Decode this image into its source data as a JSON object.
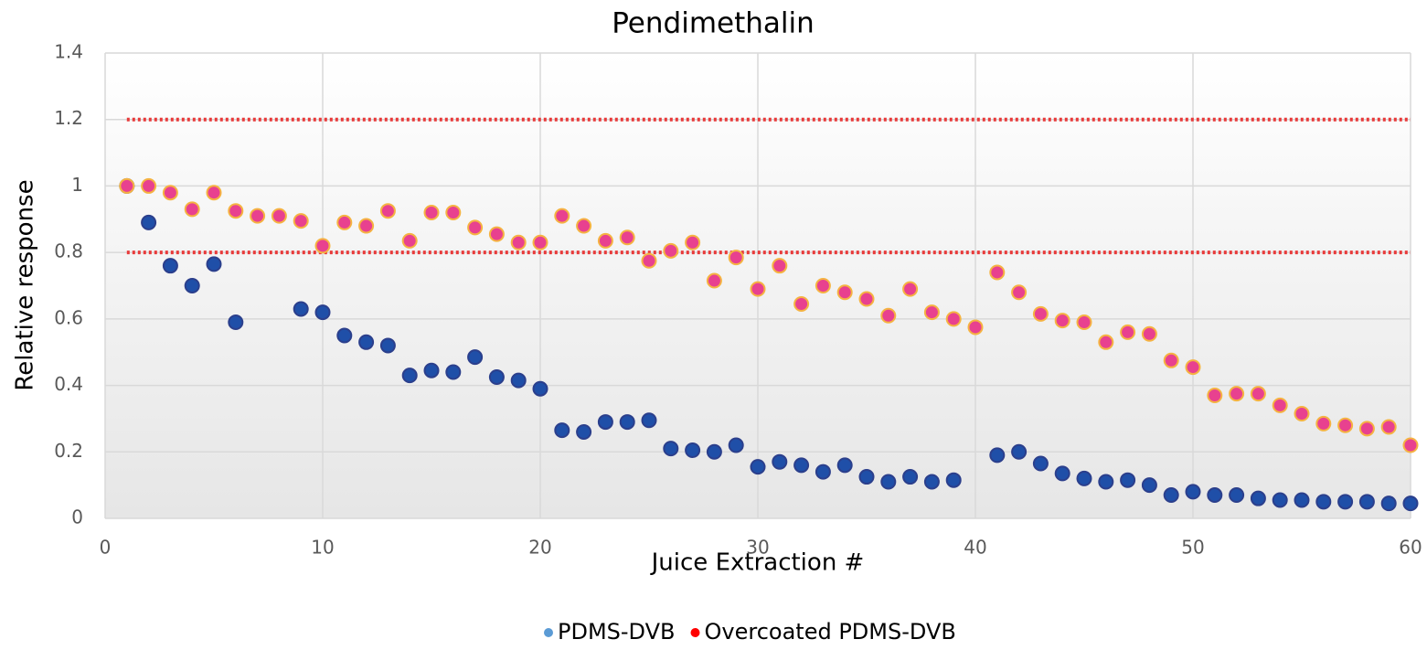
{
  "chart_data": {
    "type": "scatter",
    "title": "Pendimethalin",
    "xlabel": "Juice Extraction #",
    "ylabel": "Relative response",
    "x": [
      1,
      2,
      3,
      4,
      5,
      6,
      7,
      8,
      9,
      10,
      11,
      12,
      13,
      14,
      15,
      16,
      17,
      18,
      19,
      20,
      21,
      22,
      23,
      24,
      25,
      26,
      27,
      28,
      29,
      30,
      31,
      32,
      33,
      34,
      35,
      36,
      37,
      38,
      39,
      40,
      41,
      42,
      43,
      44,
      45,
      46,
      47,
      48,
      49,
      50,
      51,
      52,
      53,
      54,
      55,
      56,
      57,
      58,
      59,
      60
    ],
    "series": [
      {
        "name": "PDMS-DVB",
        "color": "#1f4fa8",
        "edge_color": "#2b3f8c",
        "legend_color": "#5b9bd5",
        "values": [
          1.0,
          0.89,
          0.76,
          0.7,
          0.765,
          0.59,
          null,
          null,
          0.63,
          0.62,
          0.55,
          0.53,
          0.52,
          0.43,
          0.445,
          0.44,
          0.485,
          0.425,
          0.415,
          0.39,
          0.265,
          0.26,
          0.29,
          0.29,
          0.295,
          0.21,
          0.205,
          0.2,
          0.22,
          0.155,
          0.17,
          0.16,
          0.14,
          0.16,
          0.125,
          0.11,
          0.125,
          0.11,
          0.115,
          null,
          0.19,
          0.2,
          0.165,
          0.135,
          0.12,
          0.11,
          0.115,
          0.1,
          0.07,
          0.08,
          0.07,
          0.07,
          0.06,
          0.055,
          0.055,
          0.05,
          0.05,
          0.05,
          0.045,
          0.045
        ]
      },
      {
        "name": "Overcoated PDMS-DVB",
        "color": "#e8418f",
        "edge_color": "#f5b342",
        "legend_color": "#ff0000",
        "values": [
          1.0,
          1.0,
          0.98,
          0.93,
          0.98,
          0.925,
          0.91,
          0.91,
          0.895,
          0.82,
          0.89,
          0.88,
          0.925,
          0.835,
          0.92,
          0.92,
          0.875,
          0.855,
          0.83,
          0.83,
          0.91,
          0.88,
          0.835,
          0.845,
          0.775,
          0.805,
          0.83,
          0.715,
          0.785,
          0.69,
          0.76,
          0.645,
          0.7,
          0.68,
          0.66,
          0.61,
          0.69,
          0.62,
          0.6,
          0.575,
          0.74,
          0.68,
          0.615,
          0.595,
          0.59,
          0.53,
          0.56,
          0.555,
          0.475,
          0.455,
          0.37,
          0.375,
          0.375,
          0.34,
          0.315,
          0.285,
          0.28,
          0.27,
          0.275,
          0.22
        ]
      }
    ],
    "reference_lines": [
      0.8,
      1.2
    ],
    "reference_color": "#e83a3a",
    "xlim": [
      0,
      60
    ],
    "xticks": [
      0,
      10,
      20,
      30,
      40,
      50,
      60
    ],
    "ylim": [
      0,
      1.4
    ],
    "yticks": [
      0,
      0.2,
      0.4,
      0.6,
      0.8,
      1,
      1.2,
      1.4
    ],
    "grid": true,
    "legend": "bottom"
  }
}
